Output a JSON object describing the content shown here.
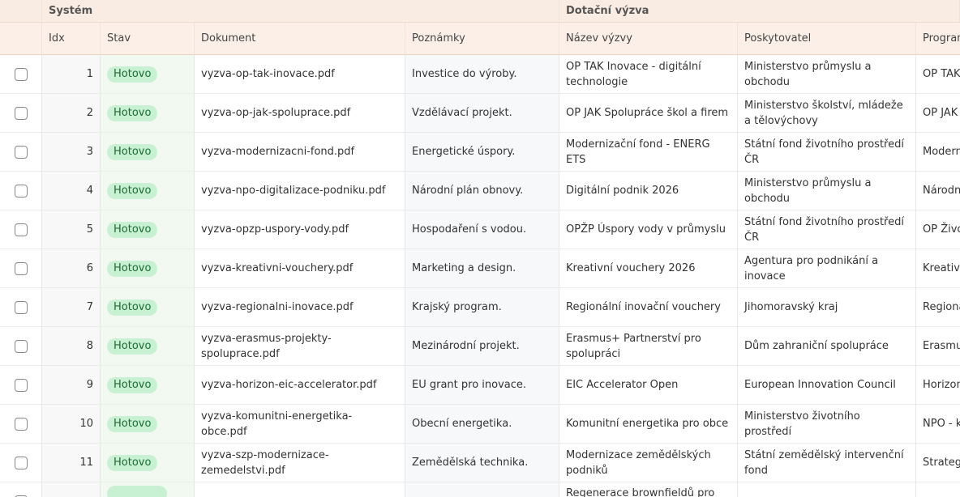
{
  "groups": [
    "Systém",
    "Dotační výzva"
  ],
  "columns": [
    "Idx",
    "Stav",
    "Dokument",
    "Poznámky",
    "Název výzvy",
    "Poskytovatel",
    "Program"
  ],
  "rows": [
    {
      "idx": 1,
      "stav": "Hotovo",
      "dokument": "vyzva-op-tak-inovace.pdf",
      "poznamky": "Investice do výroby.",
      "nazev": "OP TAK Inovace - digitální technologie",
      "poskytovatel": "Ministerstvo průmyslu a obchodu",
      "program": "OP TAK"
    },
    {
      "idx": 2,
      "stav": "Hotovo",
      "dokument": "vyzva-op-jak-spoluprace.pdf",
      "poznamky": "Vzdělávací projekt.",
      "nazev": "OP JAK Spolupráce škol a firem",
      "poskytovatel": "Ministerstvo školství, mládeže a tělovýchovy",
      "program": "OP JAK"
    },
    {
      "idx": 3,
      "stav": "Hotovo",
      "dokument": "vyzva-modernizacni-fond.pdf",
      "poznamky": "Energetické úspory.",
      "nazev": "Modernizační fond - ENERG ETS",
      "poskytovatel": "Státní fond životního prostředí ČR",
      "program": "Modern"
    },
    {
      "idx": 4,
      "stav": "Hotovo",
      "dokument": "vyzva-npo-digitalizace-podniku.pdf",
      "poznamky": "Národní plán obnovy.",
      "nazev": "Digitální podnik 2026",
      "poskytovatel": "Ministerstvo průmyslu a obchodu",
      "program": "Národn"
    },
    {
      "idx": 5,
      "stav": "Hotovo",
      "dokument": "vyzva-opzp-uspory-vody.pdf",
      "poznamky": "Hospodaření s vodou.",
      "nazev": "OPŽP Úspory vody v průmyslu",
      "poskytovatel": "Státní fond životního prostředí ČR",
      "program": "OP Živo"
    },
    {
      "idx": 6,
      "stav": "Hotovo",
      "dokument": "vyzva-kreativni-vouchery.pdf",
      "poznamky": "Marketing a design.",
      "nazev": "Kreativní vouchery 2026",
      "poskytovatel": "Agentura pro podnikání a inovace",
      "program": "Kreativ"
    },
    {
      "idx": 7,
      "stav": "Hotovo",
      "dokument": "vyzva-regionalni-inovace.pdf",
      "poznamky": "Krajský program.",
      "nazev": "Regionální inovační vouchery",
      "poskytovatel": "Jihomoravský kraj",
      "program": "Regiona"
    },
    {
      "idx": 8,
      "stav": "Hotovo",
      "dokument": "vyzva-erasmus-projekty-spoluprace.pdf",
      "poznamky": "Mezinárodní projekt.",
      "nazev": "Erasmus+ Partnerství pro spolupráci",
      "poskytovatel": "Dům zahraniční spolupráce",
      "program": "Erasmu"
    },
    {
      "idx": 9,
      "stav": "Hotovo",
      "dokument": "vyzva-horizon-eic-accelerator.pdf",
      "poznamky": "EU grant pro inovace.",
      "nazev": "EIC Accelerator Open",
      "poskytovatel": "European Innovation Council",
      "program": "Horizon"
    },
    {
      "idx": 10,
      "stav": "Hotovo",
      "dokument": "vyzva-komunitni-energetika-obce.pdf",
      "poznamky": "Obecní energetika.",
      "nazev": "Komunitní energetika pro obce",
      "poskytovatel": "Ministerstvo životního prostředí",
      "program": "NPO - k"
    },
    {
      "idx": 11,
      "stav": "Hotovo",
      "dokument": "vyzva-szp-modernizace-zemedelstvi.pdf",
      "poznamky": "Zemědělská technika.",
      "nazev": "Modernizace zemědělských podniků",
      "poskytovatel": "Státní zemědělský intervenční fond",
      "program": "Strateg"
    },
    {
      "nazev": "Regenerace brownfieldů pro"
    }
  ]
}
